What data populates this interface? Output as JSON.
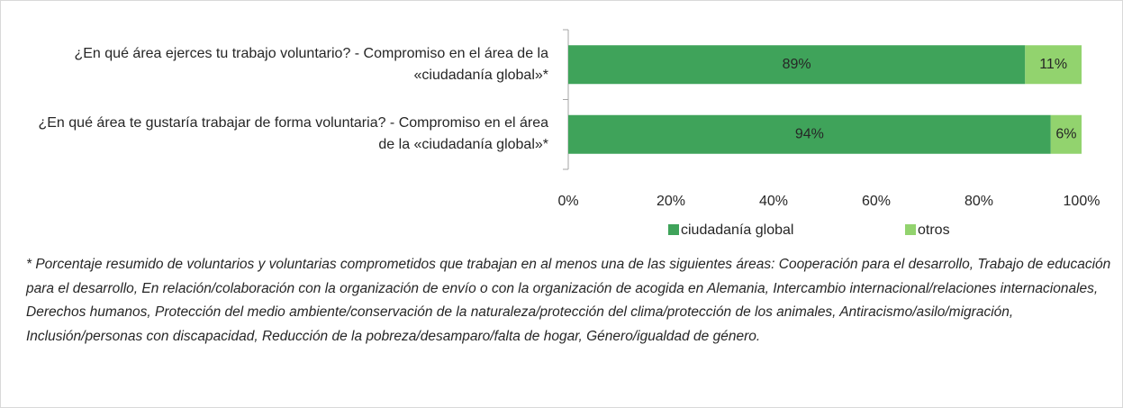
{
  "chart_data": {
    "type": "stacked_barh",
    "categories": [
      "¿En qué área ejerces tu trabajo voluntario? - Compromiso en el área de la «ciudadanía global»*",
      "¿En qué área te gustaría trabajar de forma voluntaria? - Compromiso en el área de la «ciudadanía global»*"
    ],
    "series": [
      {
        "name": "ciudadanía global",
        "color": "#3fa35a",
        "values": [
          89,
          94
        ],
        "value_labels": [
          "89%",
          "94%"
        ]
      },
      {
        "name": "otros",
        "color": "#92d36e",
        "values": [
          11,
          6
        ],
        "value_labels": [
          "11%",
          "6%"
        ]
      }
    ],
    "xlim": [
      0,
      100
    ],
    "xticks": [
      {
        "value": 0,
        "label": "0%"
      },
      {
        "value": 20,
        "label": "20%"
      },
      {
        "value": 40,
        "label": "40%"
      },
      {
        "value": 60,
        "label": "60%"
      },
      {
        "value": 80,
        "label": "80%"
      },
      {
        "value": 100,
        "label": "100%"
      }
    ],
    "legend": "bottom"
  },
  "footnote": "* Porcentaje resumido de voluntarios y voluntarias comprometidos que trabajan en al menos una de las siguientes áreas: Cooperación para el desarrollo, Trabajo de educación para el desarrollo, En relación/colaboración con la organización de envío o con la organización de acogida en Alemania, Intercambio internacional/relaciones internacionales, Derechos humanos, Protección del medio ambiente/conservación de la naturaleza/protección del clima/protección de los animales, Antiracismo/asilo/migración, Inclusión/personas con discapacidad, Reducción de la pobreza/desamparo/falta de hogar, Género/igualdad de género."
}
